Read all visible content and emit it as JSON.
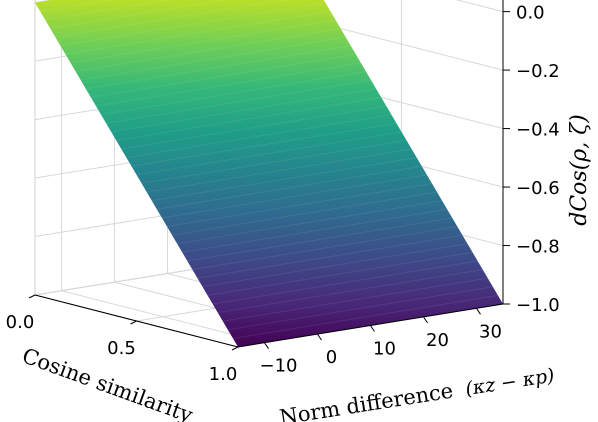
{
  "chart_data": {
    "type": "surface3d",
    "x_axis": {
      "label": "Cosine similarity",
      "range": [
        0.0,
        1.0
      ],
      "ticks": [
        0.0,
        0.5,
        1.0
      ],
      "tick_labels": [
        "0.0",
        "0.5",
        "1.0"
      ]
    },
    "y_axis": {
      "label_text": "Norm difference",
      "label_math": "(κz − κp)",
      "range": [
        -15,
        35
      ],
      "ticks": [
        -10,
        0,
        10,
        20,
        30
      ],
      "tick_labels": [
        "−10",
        "0",
        "10",
        "20",
        "30"
      ]
    },
    "z_axis": {
      "label": "dCos(ρ, ζ)",
      "range": [
        -1.0,
        0.05
      ],
      "ticks": [
        0.0,
        -0.2,
        -0.4,
        -0.6,
        -0.8,
        -1.0
      ],
      "tick_labels": [
        "0.0",
        "−0.2",
        "−0.4",
        "−0.6",
        "−0.8",
        "−1.0"
      ]
    },
    "surface": {
      "formula": "z = -x",
      "corners": [
        {
          "x": 0.0,
          "y": -15,
          "z": 0.0
        },
        {
          "x": 0.0,
          "y": 35,
          "z": 0.0
        },
        {
          "x": 1.0,
          "y": -15,
          "z": -1.0
        },
        {
          "x": 1.0,
          "y": 35,
          "z": -1.0
        }
      ],
      "colormap": "viridis",
      "colormap_stops": [
        "#fde725",
        "#b5de2b",
        "#6ece58",
        "#35b779",
        "#1f9e89",
        "#26828e",
        "#31688e",
        "#3e4989",
        "#482878",
        "#440154"
      ]
    },
    "grid": true
  }
}
